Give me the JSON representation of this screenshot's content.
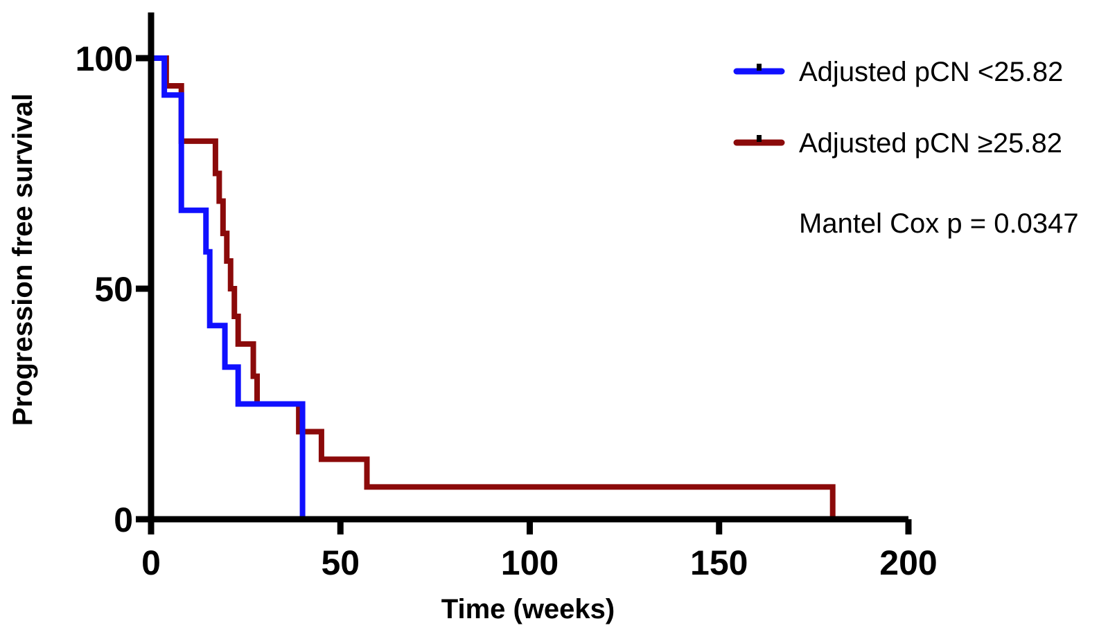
{
  "chart_data": {
    "type": "line",
    "subtype": "kaplan-meier step",
    "title": "",
    "xlabel": "Time (weeks)",
    "ylabel": "Progression free survival",
    "xlim": [
      0,
      200
    ],
    "ylim": [
      0,
      100
    ],
    "xticks": [
      0,
      50,
      100,
      150,
      200
    ],
    "yticks": [
      0,
      50,
      100
    ],
    "grid": false,
    "legend_position": "top-right",
    "annotation": "Mantel Cox p = 0.0347",
    "series": [
      {
        "name": "Adjusted pCN <25.82",
        "color": "#1010ff",
        "x": [
          0,
          3.5,
          8,
          14.5,
          15.5,
          19.5,
          23,
          40
        ],
        "y": [
          100,
          92,
          67,
          58,
          42,
          33,
          25,
          8
        ],
        "end_x": 40,
        "end_y": 0
      },
      {
        "name": "Adjusted pCN ≥25.82",
        "color": "#8b0a0a",
        "x": [
          0,
          4,
          8,
          17,
          18,
          19,
          20,
          21,
          22,
          23,
          24,
          25,
          26,
          27,
          28,
          30,
          39,
          45,
          57,
          180
        ],
        "y": [
          100,
          94,
          82,
          75,
          69,
          62,
          56,
          50,
          44,
          38,
          38,
          38,
          38,
          31,
          25,
          25,
          19,
          13,
          7,
          7
        ],
        "end_x": 180,
        "end_y": 0
      }
    ]
  }
}
